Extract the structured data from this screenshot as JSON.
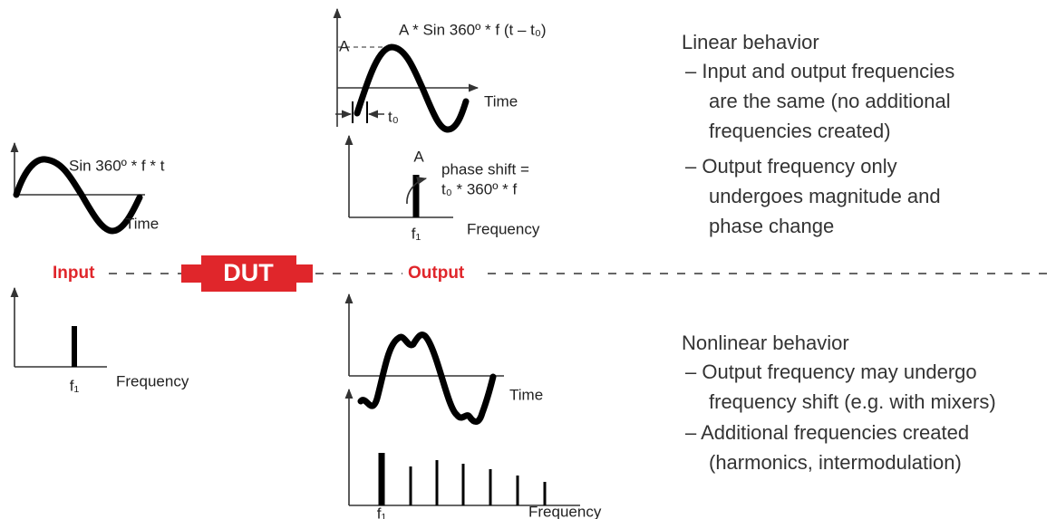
{
  "input": {
    "formula": "Sin 360º * f * t",
    "time_label": "Time",
    "label": "Input",
    "f1_label": "f₁",
    "frequency_label": "Frequency"
  },
  "dut": {
    "label": "DUT"
  },
  "output": {
    "label": "Output"
  },
  "linear": {
    "amplitude_label": "A",
    "formula": "A * Sin 360º * f (t – t₀)",
    "time_label": "Time",
    "delay_label": "t₀",
    "spectrum_amplitude_label": "A",
    "phase_shift": [
      "phase shift =",
      "t₀ * 360º * f"
    ],
    "f1_label": "f₁",
    "frequency_label": "Frequency",
    "heading": "Linear behavior",
    "bullets": [
      [
        "– Input and output frequencies",
        "are the same (no additional",
        "frequencies created)"
      ],
      [
        "– Output frequency only",
        "undergoes magnitude and",
        "phase change"
      ]
    ]
  },
  "nonlinear": {
    "time_label": "Time",
    "f1_label": "f₁",
    "frequency_label": "Frequency",
    "heading": "Nonlinear behavior",
    "bullets": [
      [
        "– Output frequency may undergo",
        "frequency shift (e.g. with mixers)"
      ],
      [
        "– Additional frequencies created",
        "(harmonics, intermodulation)"
      ]
    ]
  }
}
